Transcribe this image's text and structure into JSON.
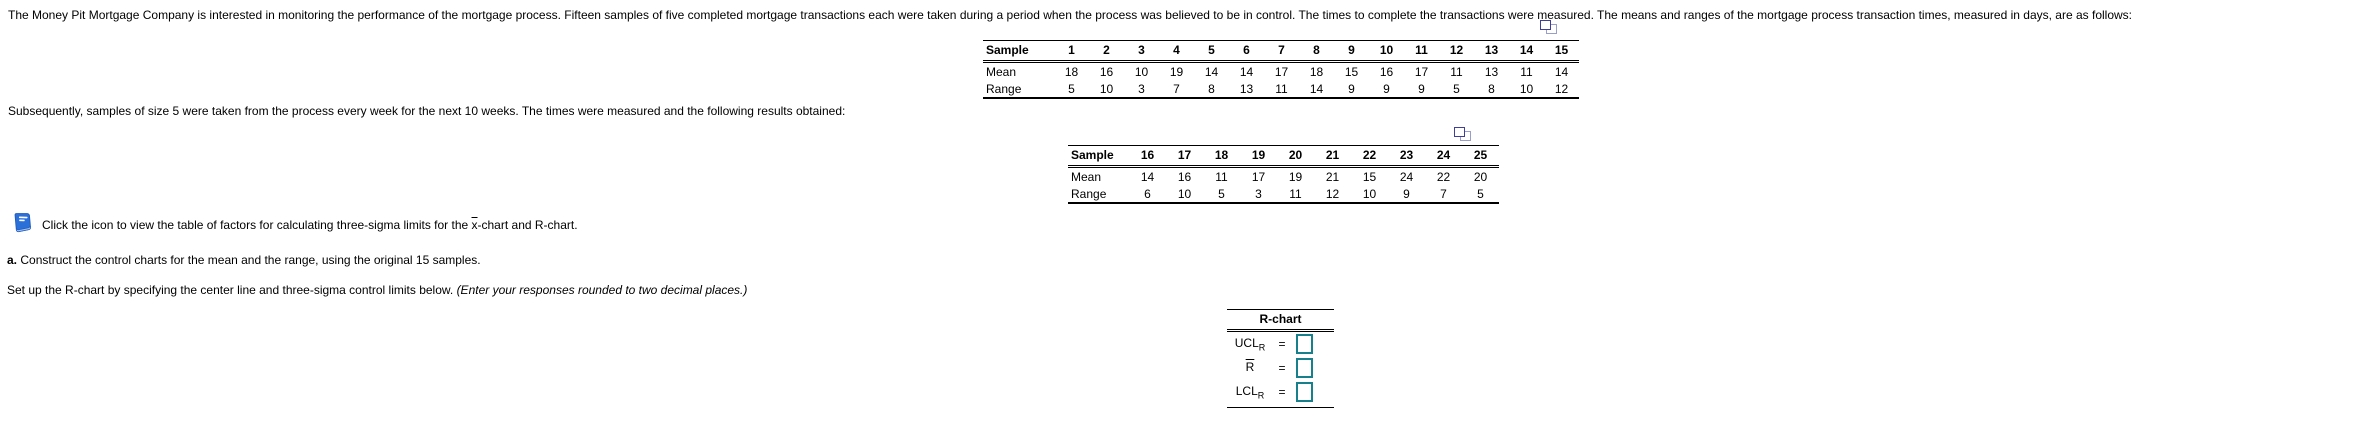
{
  "intro": "The Money Pit Mortgage Company is interested in monitoring the performance of the mortgage process. Fifteen samples of five completed mortgage transactions each were taken during a period when the process was believed to be in control. The times to complete the transactions were measured. The means and ranges of the mortgage process transaction times, measured in days, are as follows:",
  "table1": {
    "header": [
      "Sample",
      "1",
      "2",
      "3",
      "4",
      "5",
      "6",
      "7",
      "8",
      "9",
      "10",
      "11",
      "12",
      "13",
      "14",
      "15"
    ],
    "rows": [
      [
        "Mean",
        "18",
        "16",
        "10",
        "19",
        "14",
        "14",
        "17",
        "18",
        "15",
        "16",
        "17",
        "11",
        "13",
        "11",
        "14"
      ],
      [
        "Range",
        "5",
        "10",
        "3",
        "7",
        "8",
        "13",
        "11",
        "14",
        "9",
        "9",
        "9",
        "5",
        "8",
        "10",
        "12"
      ]
    ]
  },
  "paragraph2": "Subsequently, samples of size 5 were taken from the process every week for the next 10 weeks. The times were measured and the following results obtained:",
  "table2": {
    "header": [
      "Sample",
      "16",
      "17",
      "18",
      "19",
      "20",
      "21",
      "22",
      "23",
      "24",
      "25"
    ],
    "rows": [
      [
        "Mean",
        "14",
        "16",
        "11",
        "17",
        "19",
        "21",
        "15",
        "24",
        "22",
        "20"
      ],
      [
        "Range",
        "6",
        "10",
        "5",
        "3",
        "11",
        "12",
        "10",
        "9",
        "7",
        "5"
      ]
    ]
  },
  "icon_line": {
    "before": "Click the icon to view the table of factors for calculating three-sigma limits for the ",
    "xbar": "x",
    "after": "-chart and R-chart."
  },
  "part_a": {
    "label": "a.",
    "text": " Construct the control charts for the mean and the range, using the original 15 samples."
  },
  "setup": {
    "text": "Set up the R-chart by specifying the center line and three-sigma control limits below. ",
    "note": "(Enter your responses rounded to two decimal places.)"
  },
  "rchart": {
    "title": "R-chart",
    "rows": [
      {
        "label": "UCL",
        "sub": "R",
        "eq": "=",
        "value": ""
      },
      {
        "label": "R",
        "sub": "",
        "eq": "=",
        "value": ""
      },
      {
        "label": "LCL",
        "sub": "R",
        "eq": "=",
        "value": ""
      }
    ]
  },
  "colors": {
    "input_border": "#16808d",
    "book_icon_blue": "#2a70d8",
    "copy_icon_navy": "#3f3f99"
  }
}
